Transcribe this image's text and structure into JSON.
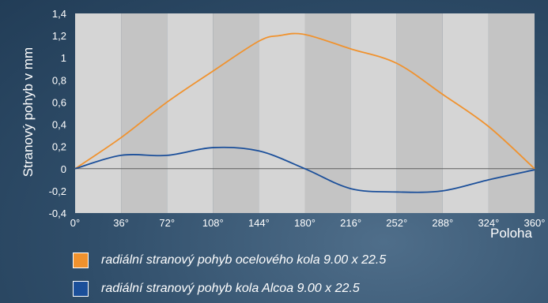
{
  "chart_data": {
    "type": "line",
    "xlabel": "Poloha",
    "ylabel": "Stranový pohyb v mm",
    "xlim": [
      0,
      360
    ],
    "ylim": [
      -0.4,
      1.4
    ],
    "x_ticks": [
      "0°",
      "36°",
      "72°",
      "108°",
      "144°",
      "180°",
      "216°",
      "252°",
      "288°",
      "324°",
      "360°"
    ],
    "y_ticks": [
      "-0,4",
      "-0,2",
      "0",
      "0,2",
      "0,4",
      "0,6",
      "0,8",
      "1",
      "1,2",
      "1,4"
    ],
    "grid": "alternating vertical bands",
    "legend_position": "bottom-left",
    "series": [
      {
        "name": "radiální stranový pohyb ocelového kola  9.00 x 22.5",
        "color": "#f0922e",
        "x": [
          0,
          36,
          72,
          108,
          144,
          160,
          180,
          216,
          252,
          288,
          324,
          360
        ],
        "y": [
          0,
          0.28,
          0.6,
          0.88,
          1.15,
          1.2,
          1.21,
          1.08,
          0.95,
          0.67,
          0.38,
          0
        ]
      },
      {
        "name": "radiální stranový pohyb kola Alcoa 9.00 x 22.5",
        "color": "#1b4f9a",
        "x": [
          0,
          36,
          72,
          108,
          144,
          180,
          216,
          252,
          288,
          324,
          360
        ],
        "y": [
          0,
          0.12,
          0.12,
          0.19,
          0.16,
          0,
          -0.18,
          -0.21,
          -0.2,
          -0.1,
          -0.01
        ]
      }
    ]
  }
}
